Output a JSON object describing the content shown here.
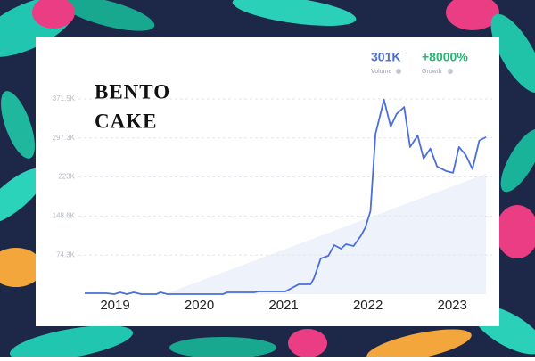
{
  "chart_data": {
    "type": "line",
    "title_lines": [
      "BENTO",
      "CAKE"
    ],
    "stats": [
      {
        "value": "301K",
        "label": "Volume"
      },
      {
        "value": "+8000%",
        "label": "Growth"
      }
    ],
    "x": [
      2018.64,
      2018.9,
      2018.99,
      2019.06,
      2019.14,
      2019.22,
      2019.31,
      2019.49,
      2019.54,
      2019.62,
      2020.28,
      2020.33,
      2020.65,
      2020.7,
      2021.02,
      2021.18,
      2021.32,
      2021.36,
      2021.44,
      2021.53,
      2021.6,
      2021.68,
      2021.74,
      2021.83,
      2021.92,
      2021.97,
      2022.03,
      2022.09,
      2022.19,
      2022.27,
      2022.34,
      2022.43,
      2022.5,
      2022.59,
      2022.66,
      2022.74,
      2022.82,
      2022.93,
      2023.01,
      2023.08,
      2023.16,
      2023.24,
      2023.32,
      2023.4
    ],
    "series": [
      {
        "name": "Volume",
        "color": "#4a6fdc",
        "values": [
          1.7,
          1.7,
          0,
          3.4,
          0,
          3.4,
          0,
          0,
          3.4,
          0,
          0,
          3.4,
          3.4,
          5.1,
          5.1,
          18.7,
          18.7,
          30.5,
          67.9,
          72.9,
          93.3,
          86.5,
          95,
          91.6,
          112,
          127,
          158,
          305,
          370,
          319,
          343,
          356,
          280,
          302,
          258,
          277,
          243,
          234,
          231,
          280,
          265,
          238,
          292,
          299
        ]
      }
    ],
    "xlim": [
      2018.64,
      2023.4
    ],
    "xticks": [
      2019,
      2020,
      2021,
      2022,
      2023
    ],
    "ylim": [
      0,
      371.5
    ],
    "yticks": [
      {
        "value": 74.3,
        "label": "74.3K"
      },
      {
        "value": 148.6,
        "label": "148.6K"
      },
      {
        "value": 223,
        "label": "223K"
      },
      {
        "value": 297.3,
        "label": "297.3K"
      },
      {
        "value": 371.5,
        "label": "371.5K"
      }
    ],
    "grid": true
  }
}
